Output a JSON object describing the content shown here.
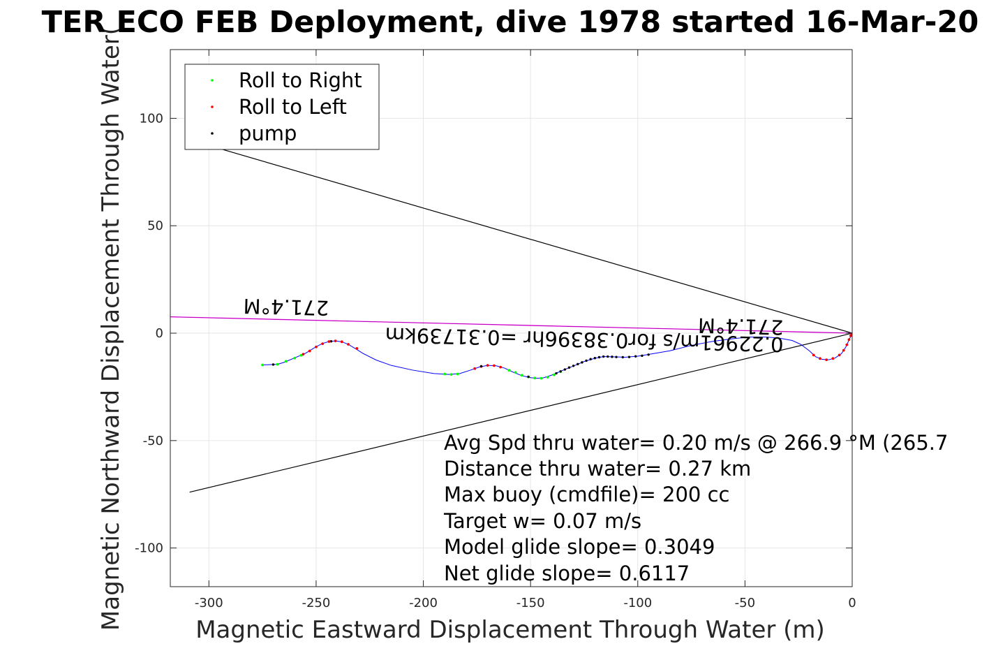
{
  "chart_data": {
    "type": "scatter",
    "title": "TER ECO FEB Deployment, dive 1978 started 16-Mar-20",
    "xlabel": "Magnetic Eastward Displacement Through Water (m)",
    "ylabel": "Magnetic Northward Displacement Through Water(",
    "xlim": [
      -318,
      0
    ],
    "ylim": [
      -118,
      132
    ],
    "xticks": [
      -300,
      -250,
      -200,
      -150,
      -100,
      -50,
      0
    ],
    "yticks": [
      -100,
      -50,
      0,
      50,
      100
    ],
    "grid": true,
    "legend": {
      "location": "top-left",
      "entries": [
        "Roll to Right",
        "Roll to Left",
        "pump"
      ]
    },
    "colors": {
      "roll_right": "#00ff00",
      "roll_left": "#ff0000",
      "pump": "#000000",
      "track": "#0000ff",
      "heading": "#ff00ff",
      "wedge": "#000000"
    },
    "track": [
      [
        -275,
        -14.8
      ],
      [
        -268,
        -14.5
      ],
      [
        -265,
        -13.6
      ],
      [
        -260,
        -11.5
      ],
      [
        -255,
        -9.4
      ],
      [
        -250,
        -6.3
      ],
      [
        -247,
        -4.8
      ],
      [
        -244,
        -3.9
      ],
      [
        -241,
        -3.6
      ],
      [
        -238,
        -4.0
      ],
      [
        -235,
        -5.2
      ],
      [
        -232,
        -7.0
      ],
      [
        -228,
        -9.5
      ],
      [
        -222,
        -12.5
      ],
      [
        -215,
        -15.0
      ],
      [
        -205,
        -17.2
      ],
      [
        -195,
        -18.8
      ],
      [
        -188,
        -19.2
      ],
      [
        -183,
        -18.8
      ],
      [
        -178,
        -17.2
      ],
      [
        -174,
        -15.8
      ],
      [
        -170,
        -15.0
      ],
      [
        -166,
        -15.2
      ],
      [
        -162,
        -16.3
      ],
      [
        -158,
        -18.2
      ],
      [
        -154,
        -19.8
      ],
      [
        -150,
        -20.7
      ],
      [
        -147,
        -21.0
      ],
      [
        -144,
        -20.8
      ],
      [
        -140,
        -19.5
      ],
      [
        -135,
        -17.3
      ],
      [
        -130,
        -15.3
      ],
      [
        -125,
        -13.2
      ],
      [
        -120,
        -11.7
      ],
      [
        -116,
        -10.9
      ],
      [
        -112,
        -11.0
      ],
      [
        -106,
        -11.2
      ],
      [
        -100,
        -10.7
      ],
      [
        -95,
        -9.9
      ],
      [
        -85,
        -8.2
      ],
      [
        -75,
        -5.7
      ],
      [
        -65,
        -3.8
      ],
      [
        -55,
        -2.5
      ],
      [
        -48,
        -1.8
      ],
      [
        -40,
        -1.8
      ],
      [
        -34,
        -2.3
      ],
      [
        -28,
        -3.4
      ],
      [
        -24,
        -5.2
      ],
      [
        -20,
        -8.2
      ],
      [
        -17,
        -11.0
      ],
      [
        -14,
        -12.2
      ],
      [
        -11,
        -12.4
      ],
      [
        -8,
        -11.6
      ],
      [
        -5,
        -9.5
      ],
      [
        -3,
        -6.5
      ],
      [
        -1.5,
        -3.2
      ],
      [
        0,
        0
      ]
    ],
    "roll_right": [
      [
        -275,
        -14.8
      ],
      [
        -268,
        -14.5
      ],
      [
        -264,
        -13.1
      ],
      [
        -260,
        -11.6
      ],
      [
        -257,
        -10.3
      ],
      [
        -190,
        -19.0
      ],
      [
        -187,
        -19.2
      ],
      [
        -184,
        -19.0
      ],
      [
        -160,
        -17.3
      ],
      [
        -157,
        -18.3
      ],
      [
        -154,
        -19.6
      ],
      [
        -151,
        -20.4
      ],
      [
        -148,
        -20.9
      ],
      [
        -145,
        -21.0
      ],
      [
        -142,
        -20.5
      ],
      [
        -139,
        -19.4
      ],
      [
        -136,
        -17.9
      ]
    ],
    "roll_left": [
      [
        -256,
        -9.8
      ],
      [
        -253,
        -8.3
      ],
      [
        -250,
        -6.4
      ],
      [
        -247,
        -4.9
      ],
      [
        -244,
        -3.9
      ],
      [
        -241,
        -3.6
      ],
      [
        -238,
        -4.0
      ],
      [
        -235,
        -5.2
      ],
      [
        -231,
        -7.1
      ],
      [
        -176,
        -16.5
      ],
      [
        -173,
        -15.5
      ],
      [
        -170,
        -15.0
      ],
      [
        -167,
        -15.1
      ],
      [
        -164,
        -15.8
      ],
      [
        -18,
        -10.2
      ],
      [
        -15,
        -11.8
      ],
      [
        -12,
        -12.4
      ],
      [
        -9,
        -11.8
      ],
      [
        -6,
        -10.2
      ],
      [
        -4,
        -8.0
      ],
      [
        -2.5,
        -5.4
      ],
      [
        -1.5,
        -3.0
      ],
      [
        -0.7,
        -1.2
      ],
      [
        -0.3,
        -0.4
      ]
    ],
    "pump": [
      [
        -138,
        -18.7
      ],
      [
        -136,
        -17.8
      ],
      [
        -134,
        -16.9
      ],
      [
        -132,
        -16.0
      ],
      [
        -130,
        -15.2
      ],
      [
        -128,
        -14.4
      ],
      [
        -126,
        -13.6
      ],
      [
        -124,
        -12.8
      ],
      [
        -122,
        -12.1
      ],
      [
        -120,
        -11.6
      ],
      [
        -118,
        -11.2
      ],
      [
        -116,
        -10.9
      ],
      [
        -114,
        -10.9
      ],
      [
        -112,
        -11.0
      ],
      [
        -110,
        -11.1
      ],
      [
        -107,
        -11.2
      ],
      [
        -104,
        -11.1
      ],
      [
        -101,
        -10.8
      ],
      [
        -98,
        -10.5
      ],
      [
        -95,
        -10.0
      ],
      [
        -270,
        -14.6
      ],
      [
        -243,
        -3.8
      ],
      [
        -173,
        -15.4
      ],
      [
        -151,
        -20.3
      ]
    ],
    "wedge": [
      [
        [
          0,
          0
        ],
        [
          -309,
          90
        ]
      ],
      [
        [
          0,
          0
        ],
        [
          -309,
          -74
        ]
      ]
    ],
    "heading_line": [
      [
        0,
        0
      ],
      [
        -318,
        7.6
      ]
    ],
    "annotations": [
      {
        "text": "271.4°M",
        "x": -244,
        "y": 15,
        "rotation": 181.4
      },
      {
        "text": "271.4°M",
        "x": -32,
        "y": 6,
        "rotation": 181.4
      },
      {
        "text": "0.22961m/s for0.38396hr =0.31739km",
        "x": -32,
        "y": -2,
        "rotation": 181.4
      }
    ],
    "info_lines": [
      "Avg Spd thru water=  0.20 m/s @ 266.9 °M (265.7",
      "Distance thru water=  0.27 km",
      "Max buoy (cmdfile)= 200 cc",
      "Target w= 0.07 m/s",
      "Model glide slope= 0.3049",
      "Net glide slope= 0.6117"
    ]
  }
}
